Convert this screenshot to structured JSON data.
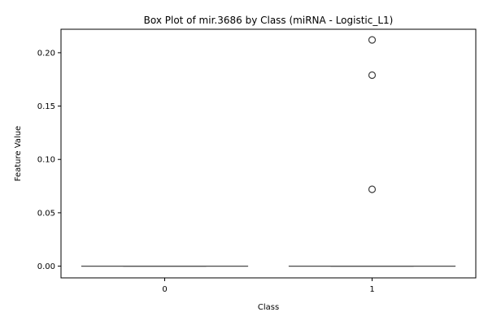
{
  "chart_data": {
    "type": "box",
    "title": "Box Plot of mir.3686 by Class (miRNA - Logistic_L1)",
    "xlabel": "Class",
    "ylabel": "Feature Value",
    "categories": [
      "0",
      "1"
    ],
    "ylim": [
      -0.011,
      0.222
    ],
    "yticks": [
      0.0,
      0.05,
      0.1,
      0.15,
      0.2
    ],
    "ytick_labels": [
      "0.00",
      "0.05",
      "0.10",
      "0.15",
      "0.20"
    ],
    "boxes": [
      {
        "category": "0",
        "min": 0.0,
        "q1": 0.0,
        "median": 0.0,
        "q3": 0.0,
        "max": 0.0,
        "outliers": []
      },
      {
        "category": "1",
        "min": 0.0,
        "q1": 0.0,
        "median": 0.0,
        "q3": 0.0,
        "max": 0.0,
        "outliers": [
          0.072,
          0.179,
          0.212
        ]
      }
    ],
    "grid": false,
    "colors": {
      "box_line": "#4d4d4d",
      "axis": "#000000",
      "outlier_edge": "#3d3d3d"
    }
  }
}
